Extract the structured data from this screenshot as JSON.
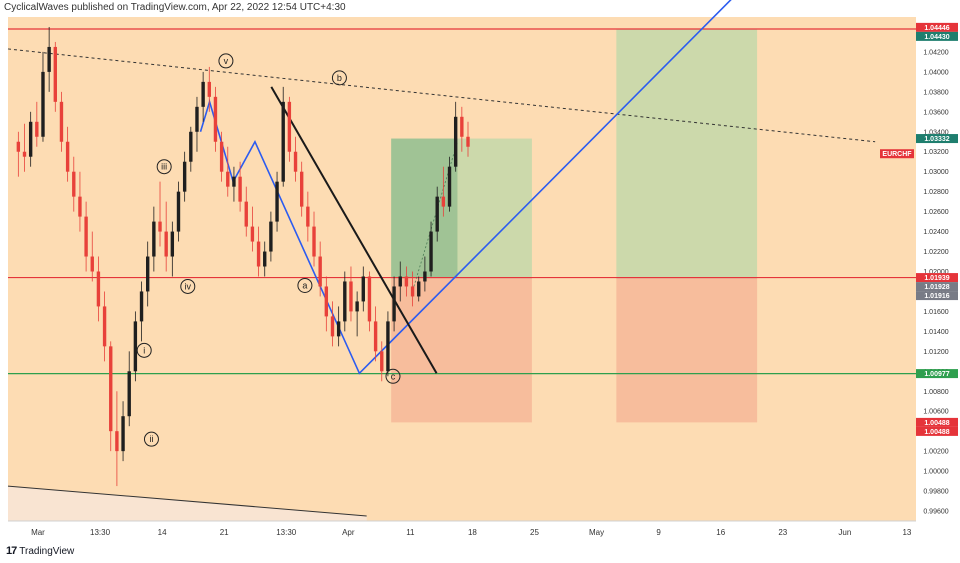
{
  "header": {
    "publisher": "CyclicalWaves published on TradingView.com, Apr 22, 2022 12:54 UTC+4:30"
  },
  "footer": {
    "brand": "TradingView"
  },
  "chart_data": {
    "type": "candlestick",
    "symbol": "EURCHF",
    "currency": "CHF",
    "background_color": "#fddcb3",
    "y_ticks": [
      "1.04200",
      "1.04000",
      "1.03800",
      "1.03600",
      "1.03400",
      "1.03200",
      "1.03000",
      "1.02800",
      "1.02600",
      "1.02400",
      "1.02200",
      "1.02000",
      "1.01800",
      "1.01600",
      "1.01400",
      "1.01200",
      "1.01000",
      "1.00800",
      "1.00600",
      "1.00400",
      "1.00200",
      "1.00000",
      "0.99800",
      "0.99600"
    ],
    "x_ticks": [
      "Mar",
      "13:30",
      "14",
      "21",
      "13:30",
      "Apr",
      "11",
      "18",
      "25",
      "May",
      "9",
      "16",
      "23",
      "Jun",
      "13"
    ],
    "ylim": [
      0.995,
      1.0455
    ],
    "price_tags": [
      {
        "label": "1.04446",
        "value": 1.04446,
        "color": "#e5343a"
      },
      {
        "label": "1.04430",
        "value": 1.0443,
        "color": "#1e7e6e"
      },
      {
        "label": "1.03332",
        "value": 1.03332,
        "color": "#1e7e6e"
      },
      {
        "label": "1.01939",
        "value": 1.01939,
        "color": "#e5343a"
      },
      {
        "label": "1.01928",
        "value": 1.01928,
        "color": "#787b86"
      },
      {
        "label": "1.01916",
        "value": 1.01916,
        "color": "#787b86"
      },
      {
        "label": "1.00977",
        "value": 1.00977,
        "color": "#2e9f4e"
      },
      {
        "label": "1.00488",
        "value": 1.00488,
        "color": "#e5343a"
      },
      {
        "label": "1.00488",
        "value": 1.00488,
        "color": "#e5343a"
      }
    ],
    "symbol_tag": {
      "label": "EURCHF",
      "color": "#e5343a"
    },
    "horizontal_levels": [
      {
        "value": 1.0443,
        "color": "#e5343a"
      },
      {
        "value": 1.01939,
        "color": "#e5343a"
      },
      {
        "value": 1.00977,
        "color": "#2e9f4e"
      }
    ],
    "wave_labels": [
      {
        "text": "v",
        "t": 0.24,
        "price": 1.0411
      },
      {
        "text": "b",
        "t": 0.365,
        "price": 1.0394
      },
      {
        "text": "iii",
        "t": 0.172,
        "price": 1.0305
      },
      {
        "text": "iv",
        "t": 0.198,
        "price": 1.0185
      },
      {
        "text": "a",
        "t": 0.327,
        "price": 1.0186
      },
      {
        "text": "i",
        "t": 0.15,
        "price": 1.0121
      },
      {
        "text": "ii",
        "t": 0.158,
        "price": 1.0032
      },
      {
        "text": "c",
        "t": 0.424,
        "price": 1.0095
      }
    ],
    "candles_ohlc": [
      [
        1.033,
        1.034,
        1.0295,
        1.032
      ],
      [
        1.032,
        1.0348,
        1.03,
        1.0315
      ],
      [
        1.0315,
        1.036,
        1.0305,
        1.035
      ],
      [
        1.035,
        1.037,
        1.0325,
        1.0335
      ],
      [
        1.0335,
        1.042,
        1.033,
        1.04
      ],
      [
        1.04,
        1.0445,
        1.038,
        1.0425
      ],
      [
        1.0425,
        1.043,
        1.036,
        1.037
      ],
      [
        1.037,
        1.038,
        1.032,
        1.033
      ],
      [
        1.033,
        1.0345,
        1.029,
        1.03
      ],
      [
        1.03,
        1.0315,
        1.026,
        1.0275
      ],
      [
        1.0275,
        1.03,
        1.024,
        1.0255
      ],
      [
        1.0255,
        1.027,
        1.02,
        1.0215
      ],
      [
        1.0215,
        1.024,
        1.019,
        1.02
      ],
      [
        1.02,
        1.0215,
        1.015,
        1.0165
      ],
      [
        1.0165,
        1.018,
        1.011,
        1.0125
      ],
      [
        1.0125,
        1.013,
        1.002,
        1.004
      ],
      [
        1.004,
        1.008,
        0.9985,
        1.002
      ],
      [
        1.002,
        1.007,
        1.001,
        1.0055
      ],
      [
        1.0055,
        1.012,
        1.0045,
        1.01
      ],
      [
        1.01,
        1.016,
        1.009,
        1.015
      ],
      [
        1.015,
        1.019,
        1.013,
        1.018
      ],
      [
        1.018,
        1.023,
        1.0165,
        1.0215
      ],
      [
        1.0215,
        1.0265,
        1.02,
        1.025
      ],
      [
        1.025,
        1.029,
        1.0225,
        1.024
      ],
      [
        1.024,
        1.027,
        1.02,
        1.0215
      ],
      [
        1.0215,
        1.025,
        1.0195,
        1.024
      ],
      [
        1.024,
        1.029,
        1.023,
        1.028
      ],
      [
        1.028,
        1.032,
        1.027,
        1.031
      ],
      [
        1.031,
        1.0345,
        1.03,
        1.034
      ],
      [
        1.034,
        1.0375,
        1.032,
        1.0365
      ],
      [
        1.0365,
        1.04,
        1.035,
        1.039
      ],
      [
        1.039,
        1.0405,
        1.036,
        1.0375
      ],
      [
        1.0375,
        1.0385,
        1.032,
        1.033
      ],
      [
        1.033,
        1.034,
        1.029,
        1.03
      ],
      [
        1.03,
        1.0325,
        1.0275,
        1.0285
      ],
      [
        1.0285,
        1.0305,
        1.027,
        1.0295
      ],
      [
        1.0295,
        1.031,
        1.026,
        1.027
      ],
      [
        1.027,
        1.0285,
        1.0235,
        1.0245
      ],
      [
        1.0245,
        1.0265,
        1.022,
        1.023
      ],
      [
        1.023,
        1.0245,
        1.0195,
        1.0205
      ],
      [
        1.0205,
        1.023,
        1.0195,
        1.022
      ],
      [
        1.022,
        1.026,
        1.021,
        1.025
      ],
      [
        1.025,
        1.03,
        1.024,
        1.029
      ],
      [
        1.029,
        1.0385,
        1.0285,
        1.037
      ],
      [
        1.037,
        1.0375,
        1.031,
        1.032
      ],
      [
        1.032,
        1.0335,
        1.029,
        1.03
      ],
      [
        1.03,
        1.031,
        1.0255,
        1.0265
      ],
      [
        1.0265,
        1.028,
        1.023,
        1.0245
      ],
      [
        1.0245,
        1.026,
        1.0205,
        1.0215
      ],
      [
        1.0215,
        1.023,
        1.0175,
        1.0185
      ],
      [
        1.0185,
        1.0195,
        1.014,
        1.0155
      ],
      [
        1.0155,
        1.017,
        1.0125,
        1.0135
      ],
      [
        1.0135,
        1.0165,
        1.0125,
        1.015
      ],
      [
        1.015,
        1.02,
        1.014,
        1.019
      ],
      [
        1.019,
        1.0205,
        1.015,
        1.016
      ],
      [
        1.016,
        1.018,
        1.0135,
        1.017
      ],
      [
        1.017,
        1.0205,
        1.016,
        1.0195
      ],
      [
        1.0195,
        1.02,
        1.014,
        1.015
      ],
      [
        1.015,
        1.0165,
        1.011,
        1.012
      ],
      [
        1.012,
        1.013,
        1.009,
        1.01
      ],
      [
        1.01,
        1.016,
        1.0095,
        1.015
      ],
      [
        1.015,
        1.0195,
        1.014,
        1.0185
      ],
      [
        1.0185,
        1.021,
        1.017,
        1.0195
      ],
      [
        1.0195,
        1.0205,
        1.0175,
        1.0185
      ],
      [
        1.0185,
        1.02,
        1.0165,
        1.0175
      ],
      [
        1.0175,
        1.0195,
        1.017,
        1.019
      ],
      [
        1.019,
        1.0215,
        1.018,
        1.02
      ],
      [
        1.02,
        1.025,
        1.0195,
        1.024
      ],
      [
        1.024,
        1.0285,
        1.023,
        1.0275
      ],
      [
        1.0275,
        1.0305,
        1.0255,
        1.0265
      ],
      [
        1.0265,
        1.0315,
        1.026,
        1.0305
      ],
      [
        1.0305,
        1.037,
        1.03,
        1.0355
      ],
      [
        1.0355,
        1.0365,
        1.032,
        1.0335
      ],
      [
        1.0335,
        1.035,
        1.0315,
        1.0325
      ]
    ],
    "candle_time_range": [
      0.008,
      0.51
    ],
    "up_color": "#1f1f1f",
    "down_color": "#e8413a",
    "drawings": {
      "blue_path": [
        [
          0.212,
          1.034
        ],
        [
          0.222,
          1.037
        ],
        [
          0.248,
          1.029
        ],
        [
          0.272,
          1.033
        ],
        [
          0.387,
          1.0098
        ],
        [
          0.81,
          1.0485
        ]
      ],
      "black_line": [
        [
          0.29,
          1.0385
        ],
        [
          0.472,
          1.0098
        ]
      ],
      "dashed_trend": [
        [
          0.0,
          1.0423
        ],
        [
          0.955,
          1.033
        ]
      ],
      "lower_trend": [
        [
          0.0,
          0.9985
        ],
        [
          0.395,
          0.9955
        ]
      ],
      "dotted_diag": [
        [
          0.447,
          1.0185
        ],
        [
          0.495,
          1.033
        ]
      ],
      "positions": [
        {
          "t0": 0.422,
          "t1": 0.577,
          "entry": 1.01939,
          "target": 1.03332,
          "stop": 1.00488
        },
        {
          "t0": 0.67,
          "t1": 0.825,
          "entry": 1.01939,
          "target": 1.0443,
          "stop": 1.00488
        }
      ],
      "position_highlight": {
        "t0": 0.422,
        "t1": 0.495,
        "p0": 1.01939,
        "p1": 1.03332
      }
    }
  }
}
